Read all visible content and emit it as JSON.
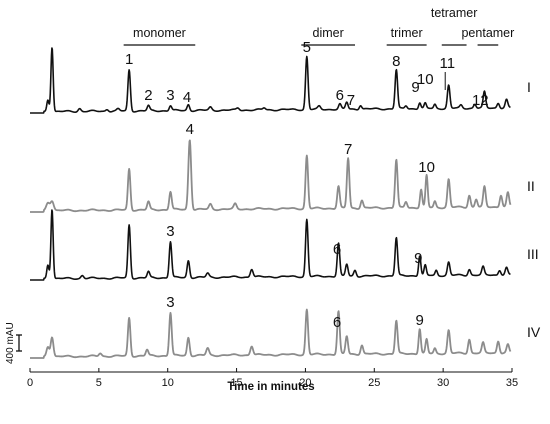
{
  "chart_data": {
    "type": "line",
    "xlabel": "Time in minutes",
    "xlim": [
      0,
      35
    ],
    "x_ticks": [
      0,
      5,
      10,
      15,
      20,
      25,
      30,
      35
    ],
    "x_tick_labels": [
      "0",
      "5",
      "10",
      "15",
      "20",
      "25",
      "30",
      "35"
    ],
    "scale_bar_label": "400 mAU",
    "colors": {
      "black": "#111111",
      "gray": "#8c8c8c"
    },
    "groups": [
      {
        "label": "monomer",
        "x_start": 6.8,
        "x_end": 12.0
      },
      {
        "label": "dimer",
        "x_start": 19.7,
        "x_end": 23.6
      },
      {
        "label": "trimer",
        "x_start": 25.9,
        "x_end": 28.8
      },
      {
        "label": "tetramer",
        "x_start": 29.9,
        "x_end": 31.7
      },
      {
        "label": "pentamer",
        "x_start": 32.5,
        "x_end": 34.0
      }
    ],
    "series": [
      {
        "trace": "I",
        "color": "black",
        "peaks": [
          {
            "x": 1.3,
            "h": 12,
            "w": 0.08
          },
          {
            "x": 1.6,
            "h": 65,
            "w": 0.08
          },
          {
            "x": 3.6,
            "h": 3,
            "w": 0.1
          },
          {
            "x": 5.6,
            "h": 2,
            "w": 0.1
          },
          {
            "x": 6.4,
            "h": 2,
            "w": 0.1
          },
          {
            "x": 7.2,
            "h": 41,
            "w": 0.09
          },
          {
            "x": 8.6,
            "h": 5,
            "w": 0.09
          },
          {
            "x": 10.2,
            "h": 5,
            "w": 0.09
          },
          {
            "x": 11.5,
            "h": 6,
            "w": 0.09
          },
          {
            "x": 13.1,
            "h": 3,
            "w": 0.1
          },
          {
            "x": 15.1,
            "h": 2,
            "w": 0.1
          },
          {
            "x": 17.0,
            "h": 2,
            "w": 0.1
          },
          {
            "x": 20.1,
            "h": 53,
            "w": 0.09
          },
          {
            "x": 21.0,
            "h": 3,
            "w": 0.1
          },
          {
            "x": 22.5,
            "h": 5,
            "w": 0.09
          },
          {
            "x": 23.0,
            "h": 7,
            "w": 0.09
          },
          {
            "x": 24.0,
            "h": 4,
            "w": 0.09
          },
          {
            "x": 26.6,
            "h": 39,
            "w": 0.09
          },
          {
            "x": 27.3,
            "h": 3,
            "w": 0.09
          },
          {
            "x": 28.3,
            "h": 6,
            "w": 0.08
          },
          {
            "x": 28.7,
            "h": 5,
            "w": 0.08
          },
          {
            "x": 29.4,
            "h": 4,
            "w": 0.08
          },
          {
            "x": 30.4,
            "h": 23,
            "w": 0.09
          },
          {
            "x": 31.3,
            "h": 3,
            "w": 0.09
          },
          {
            "x": 32.3,
            "h": 4,
            "w": 0.09
          },
          {
            "x": 33.0,
            "h": 16,
            "w": 0.09
          },
          {
            "x": 34.0,
            "h": 5,
            "w": 0.09
          },
          {
            "x": 34.6,
            "h": 8,
            "w": 0.09
          }
        ]
      },
      {
        "trace": "II",
        "color": "gray",
        "peaks": [
          {
            "x": 1.3,
            "h": 8,
            "w": 0.12
          },
          {
            "x": 1.6,
            "h": 10,
            "w": 0.12
          },
          {
            "x": 7.2,
            "h": 41,
            "w": 0.09
          },
          {
            "x": 8.6,
            "h": 8,
            "w": 0.09
          },
          {
            "x": 10.2,
            "h": 18,
            "w": 0.09
          },
          {
            "x": 11.6,
            "h": 70,
            "w": 0.1
          },
          {
            "x": 13.1,
            "h": 5,
            "w": 0.1
          },
          {
            "x": 14.9,
            "h": 5,
            "w": 0.1
          },
          {
            "x": 20.1,
            "h": 53,
            "w": 0.09
          },
          {
            "x": 22.4,
            "h": 22,
            "w": 0.09
          },
          {
            "x": 23.1,
            "h": 50,
            "w": 0.09
          },
          {
            "x": 24.1,
            "h": 8,
            "w": 0.09
          },
          {
            "x": 26.6,
            "h": 48,
            "w": 0.09
          },
          {
            "x": 27.3,
            "h": 6,
            "w": 0.09
          },
          {
            "x": 28.4,
            "h": 18,
            "w": 0.08
          },
          {
            "x": 28.8,
            "h": 32,
            "w": 0.08
          },
          {
            "x": 29.4,
            "h": 6,
            "w": 0.08
          },
          {
            "x": 30.4,
            "h": 28,
            "w": 0.09
          },
          {
            "x": 31.9,
            "h": 12,
            "w": 0.09
          },
          {
            "x": 32.4,
            "h": 8,
            "w": 0.09
          },
          {
            "x": 33.0,
            "h": 20,
            "w": 0.09
          },
          {
            "x": 34.2,
            "h": 12,
            "w": 0.09
          },
          {
            "x": 34.7,
            "h": 14,
            "w": 0.09
          }
        ]
      },
      {
        "trace": "III",
        "color": "black",
        "peaks": [
          {
            "x": 1.3,
            "h": 14,
            "w": 0.08
          },
          {
            "x": 1.6,
            "h": 70,
            "w": 0.08
          },
          {
            "x": 3.8,
            "h": 3,
            "w": 0.1
          },
          {
            "x": 7.2,
            "h": 53,
            "w": 0.09
          },
          {
            "x": 8.6,
            "h": 6,
            "w": 0.09
          },
          {
            "x": 10.2,
            "h": 36,
            "w": 0.09
          },
          {
            "x": 11.5,
            "h": 17,
            "w": 0.09
          },
          {
            "x": 12.9,
            "h": 4,
            "w": 0.1
          },
          {
            "x": 16.1,
            "h": 8,
            "w": 0.1
          },
          {
            "x": 20.1,
            "h": 57,
            "w": 0.09
          },
          {
            "x": 22.4,
            "h": 33,
            "w": 0.09
          },
          {
            "x": 23.0,
            "h": 12,
            "w": 0.09
          },
          {
            "x": 23.6,
            "h": 6,
            "w": 0.09
          },
          {
            "x": 26.6,
            "h": 38,
            "w": 0.09
          },
          {
            "x": 28.3,
            "h": 20,
            "w": 0.08
          },
          {
            "x": 28.7,
            "h": 10,
            "w": 0.08
          },
          {
            "x": 29.5,
            "h": 5,
            "w": 0.08
          },
          {
            "x": 30.4,
            "h": 13,
            "w": 0.09
          },
          {
            "x": 31.9,
            "h": 6,
            "w": 0.09
          },
          {
            "x": 32.9,
            "h": 8,
            "w": 0.09
          },
          {
            "x": 34.1,
            "h": 5,
            "w": 0.09
          },
          {
            "x": 34.6,
            "h": 7,
            "w": 0.09
          }
        ]
      },
      {
        "trace": "IV",
        "color": "gray",
        "peaks": [
          {
            "x": 1.3,
            "h": 10,
            "w": 0.1
          },
          {
            "x": 1.6,
            "h": 20,
            "w": 0.1
          },
          {
            "x": 5.1,
            "h": 3,
            "w": 0.1
          },
          {
            "x": 7.2,
            "h": 38,
            "w": 0.09
          },
          {
            "x": 8.5,
            "h": 6,
            "w": 0.09
          },
          {
            "x": 10.2,
            "h": 43,
            "w": 0.09
          },
          {
            "x": 11.5,
            "h": 18,
            "w": 0.09
          },
          {
            "x": 12.9,
            "h": 7,
            "w": 0.1
          },
          {
            "x": 16.1,
            "h": 9,
            "w": 0.1
          },
          {
            "x": 20.1,
            "h": 45,
            "w": 0.09
          },
          {
            "x": 22.4,
            "h": 43,
            "w": 0.09
          },
          {
            "x": 23.0,
            "h": 18,
            "w": 0.09
          },
          {
            "x": 24.1,
            "h": 9,
            "w": 0.09
          },
          {
            "x": 26.6,
            "h": 33,
            "w": 0.09
          },
          {
            "x": 28.3,
            "h": 25,
            "w": 0.08
          },
          {
            "x": 28.8,
            "h": 14,
            "w": 0.08
          },
          {
            "x": 29.4,
            "h": 5,
            "w": 0.08
          },
          {
            "x": 30.4,
            "h": 23,
            "w": 0.09
          },
          {
            "x": 31.9,
            "h": 14,
            "w": 0.09
          },
          {
            "x": 32.9,
            "h": 10,
            "w": 0.09
          },
          {
            "x": 34.0,
            "h": 12,
            "w": 0.09
          },
          {
            "x": 34.7,
            "h": 8,
            "w": 0.09
          }
        ]
      }
    ],
    "peak_labels": [
      {
        "trace": "I",
        "text": "1",
        "x": 7.2
      },
      {
        "trace": "I",
        "text": "2",
        "x": 8.6
      },
      {
        "trace": "I",
        "text": "3",
        "x": 10.2
      },
      {
        "trace": "I",
        "text": "4",
        "x": 11.4
      },
      {
        "trace": "I",
        "text": "5",
        "x": 20.1
      },
      {
        "trace": "I",
        "text": "6",
        "x": 22.5
      },
      {
        "trace": "I",
        "text": "7",
        "x": 23.3
      },
      {
        "trace": "I",
        "text": "8",
        "x": 26.6
      },
      {
        "trace": "I",
        "text": "9",
        "x": 28.0
      },
      {
        "trace": "I",
        "text": "10",
        "x": 28.7
      },
      {
        "trace": "I",
        "text": "11",
        "x": 30.3
      },
      {
        "trace": "I",
        "text": "12",
        "x": 32.7
      },
      {
        "trace": "II",
        "text": "4",
        "x": 11.6
      },
      {
        "trace": "II",
        "text": "7",
        "x": 23.1
      },
      {
        "trace": "II",
        "text": "10",
        "x": 28.8
      },
      {
        "trace": "III",
        "text": "3",
        "x": 10.2
      },
      {
        "trace": "III",
        "text": "6",
        "x": 22.3
      },
      {
        "trace": "III",
        "text": "9",
        "x": 28.2
      },
      {
        "trace": "IV",
        "text": "3",
        "x": 10.2
      },
      {
        "trace": "IV",
        "text": "6",
        "x": 22.3
      },
      {
        "trace": "IV",
        "text": "9",
        "x": 28.3
      }
    ]
  }
}
